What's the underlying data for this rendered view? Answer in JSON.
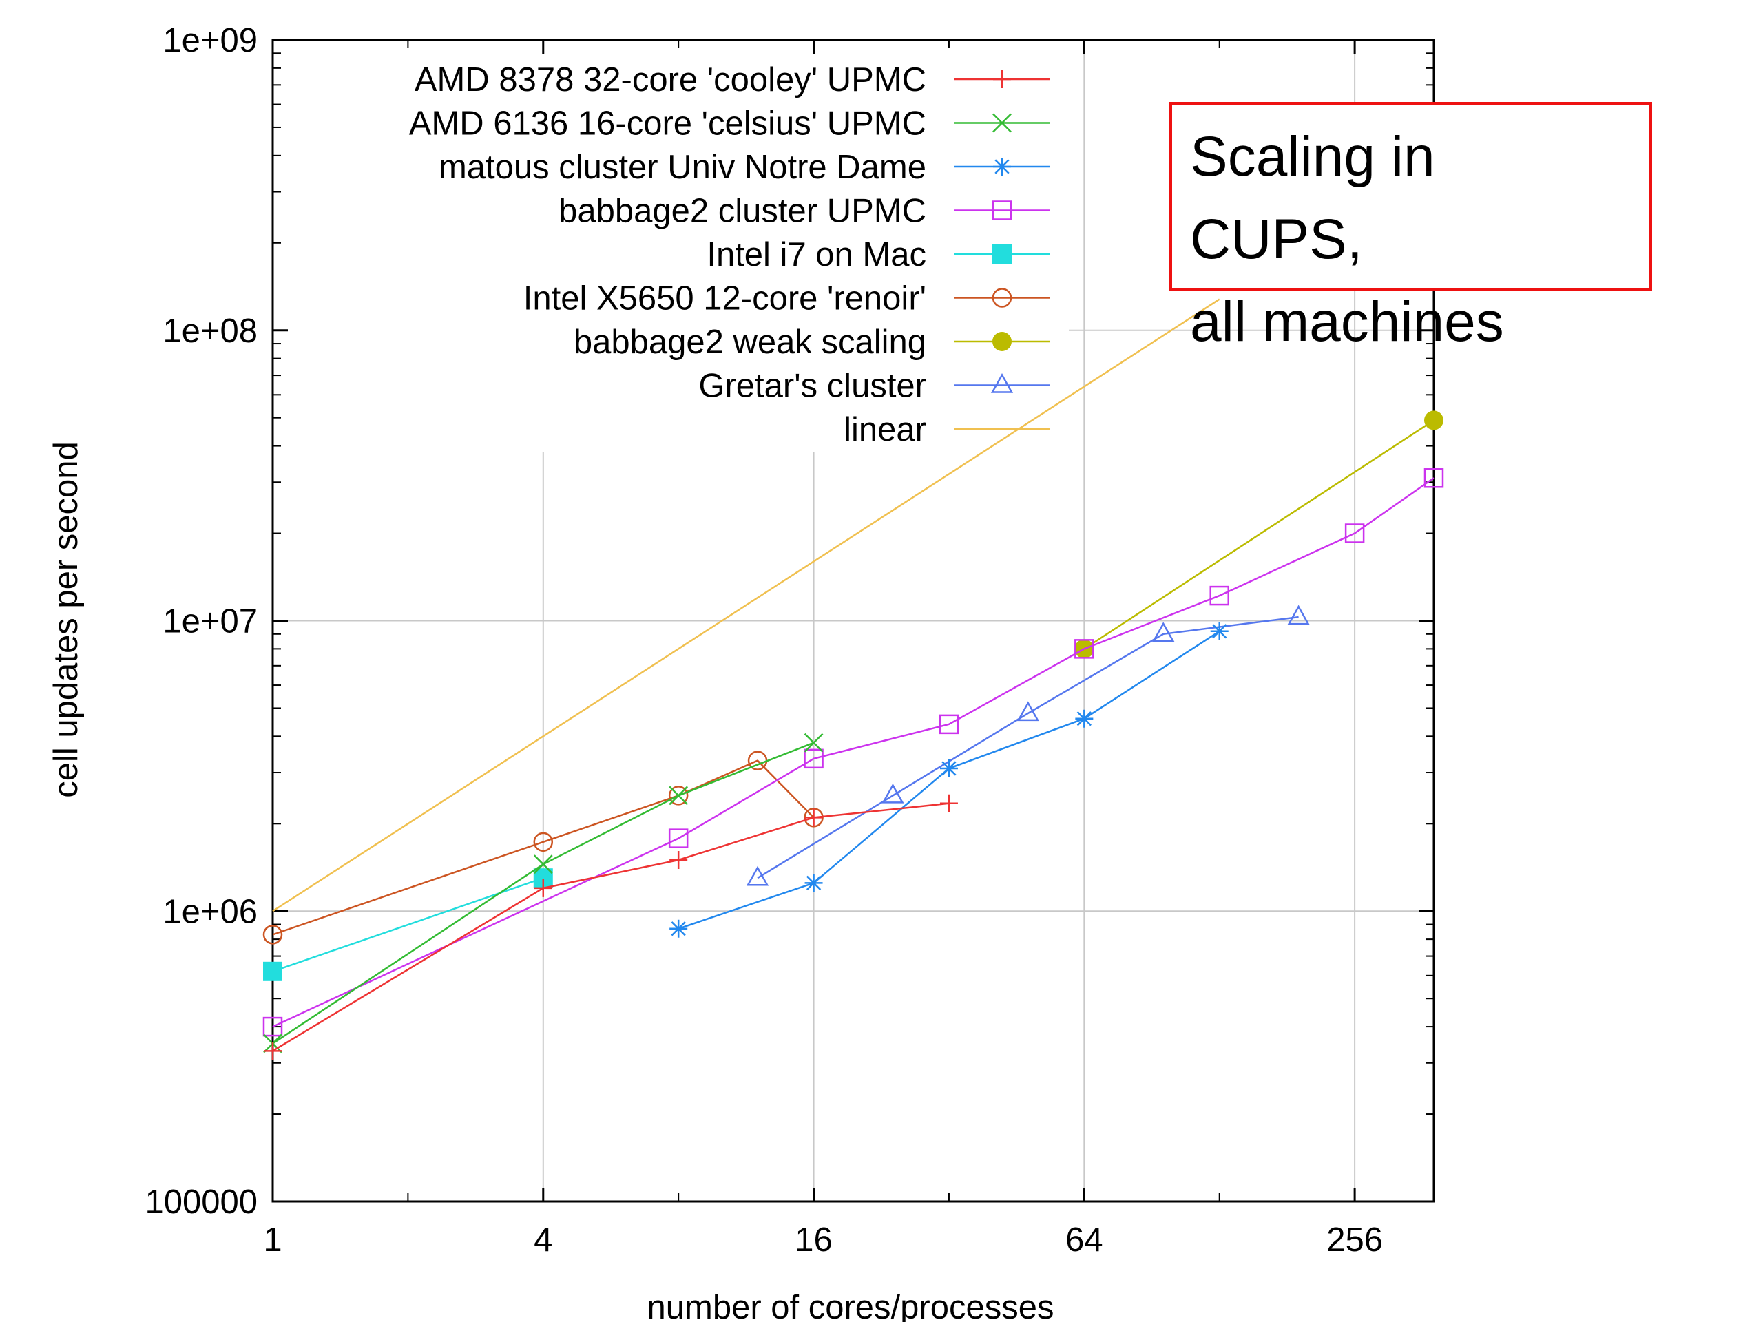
{
  "chart_data": {
    "type": "line",
    "xscale": "log2",
    "yscale": "log10",
    "xlabel": "number of cores/processes",
    "ylabel": "cell updates per second",
    "xlim": [
      1,
      384
    ],
    "ylim": [
      100000,
      1000000000
    ],
    "x_ticks": [
      {
        "value": 1,
        "label": "1"
      },
      {
        "value": 4,
        "label": "4"
      },
      {
        "value": 16,
        "label": "16"
      },
      {
        "value": 64,
        "label": "64"
      },
      {
        "value": 256,
        "label": "256"
      }
    ],
    "y_ticks": [
      {
        "value": 100000,
        "label": "100000"
      },
      {
        "value": 1000000,
        "label": "1e+06"
      },
      {
        "value": 10000000,
        "label": "1e+07"
      },
      {
        "value": 100000000,
        "label": "1e+08"
      },
      {
        "value": 1000000000,
        "label": "1e+09"
      }
    ],
    "grid": true,
    "legend_position": "top-left",
    "series": [
      {
        "name": "AMD 8378 32-core 'cooley' UPMC",
        "color": "#ee3333",
        "marker": "plus",
        "points": [
          [
            1,
            330000
          ],
          [
            4,
            1200000
          ],
          [
            8,
            1500000
          ],
          [
            16,
            2100000
          ],
          [
            32,
            2350000
          ]
        ]
      },
      {
        "name": "AMD 6136 16-core 'celsius' UPMC",
        "color": "#33bb33",
        "marker": "cross",
        "points": [
          [
            1,
            350000
          ],
          [
            4,
            1450000
          ],
          [
            8,
            2500000
          ],
          [
            16,
            3800000
          ]
        ]
      },
      {
        "name": "matous cluster Univ Notre Dame",
        "color": "#2288ee",
        "marker": "star",
        "points": [
          [
            8,
            870000
          ],
          [
            16,
            1250000
          ],
          [
            32,
            3100000
          ],
          [
            64,
            4600000
          ],
          [
            128,
            9200000
          ]
        ]
      },
      {
        "name": "babbage2 cluster UPMC",
        "color": "#cc33ee",
        "marker": "open-square",
        "points": [
          [
            1,
            400000
          ],
          [
            8,
            1780000
          ],
          [
            16,
            3350000
          ],
          [
            32,
            4400000
          ],
          [
            64,
            8000000
          ],
          [
            128,
            12200000
          ],
          [
            256,
            20000000
          ],
          [
            384,
            31000000
          ]
        ]
      },
      {
        "name": "Intel i7 on Mac",
        "color": "#22dddd",
        "marker": "filled-square",
        "points": [
          [
            1,
            620000
          ],
          [
            4,
            1300000
          ]
        ]
      },
      {
        "name": "Intel  X5650  12-core 'renoir'",
        "color": "#cc5522",
        "marker": "open-circle",
        "points": [
          [
            1,
            830000
          ],
          [
            4,
            1730000
          ],
          [
            8,
            2500000
          ],
          [
            12,
            3300000
          ],
          [
            16,
            2100000
          ]
        ]
      },
      {
        "name": "babbage2 weak scaling",
        "color": "#bbbb00",
        "marker": "filled-circle",
        "points": [
          [
            64,
            8000000
          ],
          [
            384,
            49000000
          ]
        ]
      },
      {
        "name": "Gretar's cluster",
        "color": "#5577ee",
        "marker": "open-triangle",
        "points": [
          [
            12,
            1300000
          ],
          [
            24,
            2500000
          ],
          [
            48,
            4800000
          ],
          [
            96,
            9000000
          ],
          [
            192,
            10300000
          ]
        ]
      },
      {
        "name": "linear",
        "color": "#f0c050",
        "marker": "none",
        "points": [
          [
            1,
            1000000
          ],
          [
            128,
            128000000
          ]
        ]
      }
    ]
  },
  "annotation": {
    "lines": [
      "Scaling in",
      "CUPS,",
      "all machines"
    ],
    "color": "#ee1111"
  }
}
